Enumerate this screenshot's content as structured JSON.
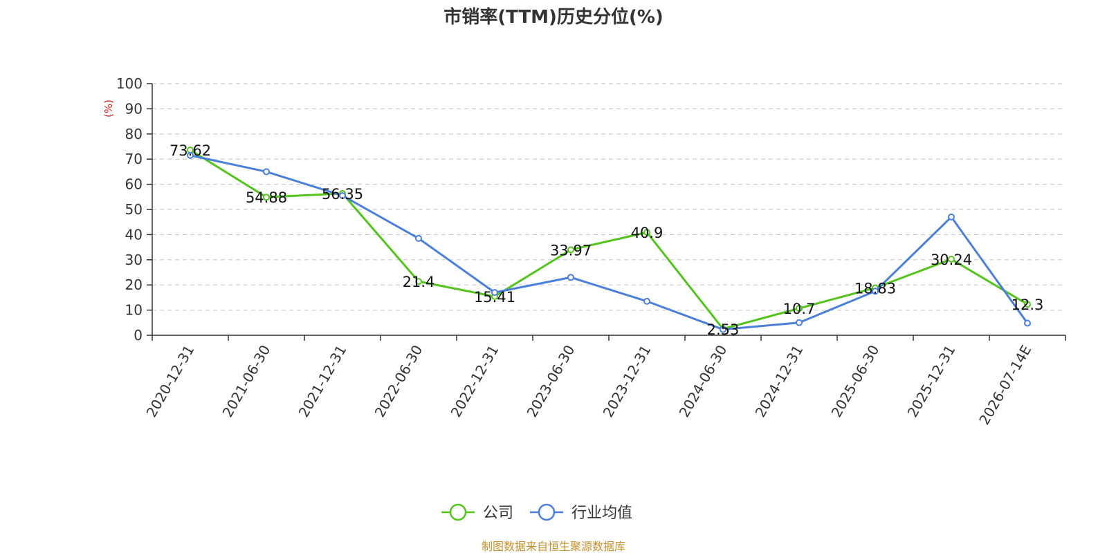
{
  "chart_data": {
    "type": "line",
    "title": "市销率(TTM)历史分位(%)",
    "ylabel": "(%)",
    "ylim": [
      0,
      100
    ],
    "yticks": [
      0,
      10,
      20,
      30,
      40,
      50,
      60,
      70,
      80,
      90,
      100
    ],
    "grid": true,
    "legend_position": "bottom",
    "categories": [
      "2020-12-31",
      "2021-06-30",
      "2021-12-31",
      "2022-06-30",
      "2022-12-31",
      "2023-06-30",
      "2023-12-31",
      "2024-06-30",
      "2024-12-31",
      "2025-06-30",
      "2025-12-31",
      "2026-07-14E"
    ],
    "series": [
      {
        "name": "公司",
        "color": "#52c41a",
        "values": [
          73.62,
          54.88,
          56.35,
          21.4,
          15.41,
          33.97,
          40.9,
          2.53,
          10.7,
          18.83,
          30.24,
          12.3
        ],
        "labels": [
          "73.62",
          "54.88",
          "56.35",
          "21.4",
          "15.41",
          "33.97",
          "40.9",
          "2.53",
          "10.7",
          "18.83",
          "30.24",
          "12.3"
        ]
      },
      {
        "name": "行业均值",
        "color": "#4a7fdb",
        "values": [
          71.5,
          65.0,
          55.5,
          38.5,
          17.0,
          23.0,
          13.5,
          2.3,
          5.0,
          17.5,
          47.0,
          4.8
        ]
      }
    ],
    "source": "制图数据来自恒生聚源数据库",
    "source_color": "#c8902a",
    "unit_color": "#e02020",
    "axis_color": "#333333",
    "grid_color": "#cccccc"
  }
}
